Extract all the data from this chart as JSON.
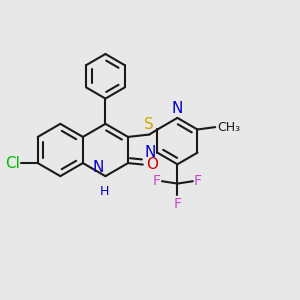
{
  "background_color": "#e8e8e8",
  "bond_color": "#1a1a1a",
  "bond_width": 1.5,
  "figsize": [
    3.0,
    3.0
  ],
  "dpi": 100,
  "colors": {
    "Cl": "#00bb00",
    "S": "#ccaa00",
    "N": "#0000cc",
    "O": "#cc0000",
    "F": "#cc44cc",
    "C": "#1a1a1a"
  }
}
